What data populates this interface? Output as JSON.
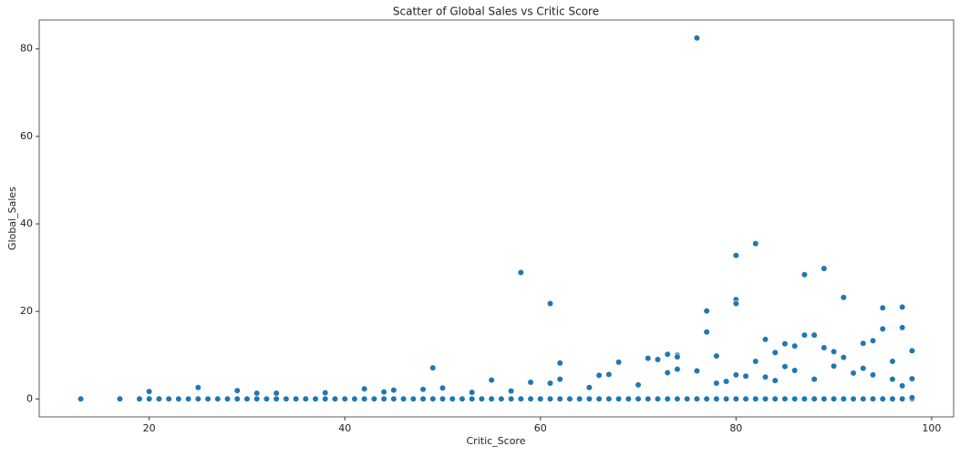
{
  "chart_data": {
    "type": "scatter",
    "title": "Scatter of Global Sales vs Critic Score",
    "x_label": "Critic_Score",
    "y_label": "Global_Sales",
    "color": "#1f77b4",
    "xlim": [
      8.75,
      102.25
    ],
    "ylim": [
      -4.1,
      86.6
    ],
    "xticks": [
      20,
      40,
      60,
      80,
      100
    ],
    "yticks": [
      0,
      20,
      40,
      60,
      80
    ],
    "x": [
      13,
      17,
      19,
      20,
      21,
      22,
      23,
      24,
      25,
      26,
      27,
      28,
      29,
      30,
      31,
      32,
      33,
      34,
      35,
      36,
      37,
      38,
      39,
      40,
      41,
      42,
      43,
      44,
      45,
      46,
      47,
      48,
      49,
      50,
      51,
      52,
      53,
      54,
      55,
      56,
      57,
      58,
      59,
      60,
      61,
      62,
      63,
      64,
      65,
      66,
      67,
      68,
      69,
      70,
      71,
      72,
      73,
      74,
      75,
      76,
      77,
      78,
      79,
      80,
      81,
      82,
      83,
      84,
      85,
      86,
      87,
      88,
      89,
      90,
      91,
      92,
      93,
      94,
      95,
      96,
      97,
      98,
      76,
      82,
      58,
      89,
      87,
      80,
      91,
      80,
      80,
      61,
      95,
      97,
      77,
      97,
      95,
      77,
      87,
      88,
      83,
      94,
      93,
      85,
      86,
      89,
      98,
      90,
      84,
      73,
      74,
      74,
      78,
      71,
      72,
      91,
      68,
      62,
      49,
      96,
      82,
      85,
      90,
      80,
      81,
      76,
      67,
      66,
      74,
      73,
      55,
      59,
      61,
      62,
      25,
      20,
      29,
      42,
      48,
      50,
      45,
      96,
      97,
      98,
      98,
      94,
      92,
      88,
      84,
      78,
      70,
      65,
      57,
      53,
      38,
      33,
      31,
      44,
      79,
      83,
      86,
      93
    ],
    "y": [
      0,
      0,
      0,
      0,
      0,
      0,
      0,
      0,
      0,
      0,
      0,
      0,
      0,
      0,
      0,
      0,
      0,
      0,
      0,
      0,
      0,
      0,
      0,
      0,
      0,
      0,
      0,
      0,
      0,
      0,
      0,
      0,
      0,
      0,
      0,
      0,
      0,
      0,
      0,
      0,
      0,
      0,
      0,
      0,
      0,
      0,
      0,
      0,
      0,
      0,
      0,
      0,
      0,
      0,
      0,
      0,
      0,
      0,
      0,
      0,
      0,
      0,
      0,
      0,
      0,
      0,
      0,
      0,
      0,
      0,
      0,
      0,
      0,
      0,
      0,
      0,
      0,
      0,
      0,
      0,
      0,
      0,
      82.5,
      35.5,
      28.9,
      29.8,
      28.4,
      32.8,
      23.2,
      22.7,
      21.8,
      21.8,
      20.8,
      21.0,
      20.1,
      16.3,
      16.0,
      15.3,
      14.6,
      14.6,
      13.6,
      13.3,
      12.7,
      12.6,
      12.1,
      11.7,
      11.0,
      10.8,
      10.6,
      10.2,
      10.0,
      9.6,
      9.8,
      9.3,
      9.0,
      9.5,
      8.4,
      8.2,
      7.1,
      8.6,
      8.6,
      7.4,
      7.5,
      5.5,
      5.2,
      6.4,
      5.6,
      5.4,
      6.8,
      6.0,
      4.3,
      3.8,
      3.6,
      4.5,
      2.6,
      1.7,
      1.9,
      2.3,
      2.2,
      2.5,
      2.0,
      4.5,
      3.0,
      4.6,
      0.3,
      5.5,
      5.9,
      4.5,
      4.2,
      3.6,
      3.2,
      2.6,
      1.8,
      1.5,
      1.4,
      1.3,
      1.3,
      1.6,
      4.0,
      5.0,
      6.5,
      7.0
    ]
  }
}
